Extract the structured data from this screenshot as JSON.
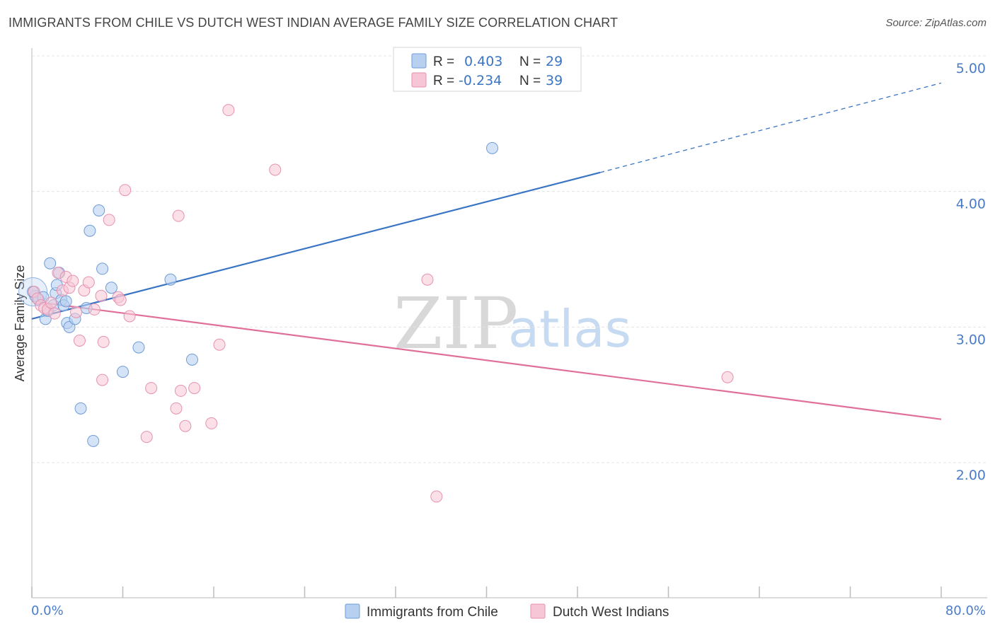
{
  "title": "IMMIGRANTS FROM CHILE VS DUTCH WEST INDIAN AVERAGE FAMILY SIZE CORRELATION CHART",
  "source": "Source: ZipAtlas.com",
  "watermark": {
    "zip": "ZIP",
    "atlas": "atlas"
  },
  "colors": {
    "blue": "#3a75c4",
    "blue_fill": "#b8d0f0",
    "pink": "#e0709a",
    "pink_fill": "#f7c6d6",
    "axis_text": "#4a7cc8",
    "grid": "#e4e4e4"
  },
  "legend": {
    "r_label": "R =",
    "n_label": "N =",
    "blue": {
      "r": "0.403",
      "n": "29"
    },
    "pink": {
      "r": "-0.234",
      "n": "39"
    }
  },
  "bottom_legend": {
    "blue": "Immigrants from Chile",
    "pink": "Dutch West Indians"
  },
  "chart_data": {
    "type": "scatter",
    "title": "IMMIGRANTS FROM CHILE VS DUTCH WEST INDIAN AVERAGE FAMILY SIZE CORRELATION CHART",
    "xlabel": "",
    "ylabel": "Average Family Size",
    "xlim": [
      0,
      80
    ],
    "ylim": [
      1.0,
      5.2
    ],
    "x_tick_labels": [
      "0.0%",
      "80.0%"
    ],
    "y_ticks": [
      2.0,
      3.0,
      4.0,
      5.0
    ],
    "y_tick_labels": [
      "2.00",
      "3.00",
      "4.00",
      "5.00"
    ],
    "grid": true,
    "legend_position": "top-center",
    "series": [
      {
        "name": "Immigrants from Chile",
        "color": "#3a75c4",
        "r": 0.403,
        "n": 29,
        "trend": {
          "x0": 0,
          "y0": 3.06,
          "x1": 50,
          "y1": 4.14,
          "dashed_to_x": 80,
          "dashed_to_y": 4.8
        },
        "points": [
          [
            0.3,
            3.23
          ],
          [
            0.6,
            3.2
          ],
          [
            1.0,
            3.22
          ],
          [
            1.2,
            3.06
          ],
          [
            1.4,
            3.12
          ],
          [
            1.6,
            3.47
          ],
          [
            1.9,
            3.16
          ],
          [
            2.1,
            3.25
          ],
          [
            2.2,
            3.31
          ],
          [
            2.4,
            3.4
          ],
          [
            2.6,
            3.2
          ],
          [
            2.8,
            3.16
          ],
          [
            3.0,
            3.19
          ],
          [
            3.1,
            3.03
          ],
          [
            3.3,
            3.0
          ],
          [
            3.8,
            3.06
          ],
          [
            4.3,
            2.4
          ],
          [
            4.8,
            3.14
          ],
          [
            5.1,
            3.71
          ],
          [
            5.4,
            2.16
          ],
          [
            5.9,
            3.86
          ],
          [
            6.2,
            3.43
          ],
          [
            7.0,
            3.29
          ],
          [
            8.0,
            2.67
          ],
          [
            9.4,
            2.85
          ],
          [
            12.2,
            3.35
          ],
          [
            14.1,
            2.76
          ],
          [
            40.5,
            4.32
          ],
          [
            0.1,
            3.26
          ]
        ]
      },
      {
        "name": "Dutch West Indians",
        "color": "#e0709a",
        "r": -0.234,
        "n": 39,
        "trend": {
          "x0": 0,
          "y0": 3.19,
          "x1": 80,
          "y1": 2.32
        },
        "points": [
          [
            0.2,
            3.26
          ],
          [
            0.5,
            3.21
          ],
          [
            0.8,
            3.16
          ],
          [
            1.1,
            3.14
          ],
          [
            1.4,
            3.13
          ],
          [
            1.7,
            3.18
          ],
          [
            2.0,
            3.1
          ],
          [
            2.3,
            3.4
          ],
          [
            2.7,
            3.27
          ],
          [
            3.0,
            3.37
          ],
          [
            3.3,
            3.29
          ],
          [
            3.6,
            3.34
          ],
          [
            3.9,
            3.11
          ],
          [
            4.2,
            2.9
          ],
          [
            4.6,
            3.27
          ],
          [
            5.0,
            3.33
          ],
          [
            5.5,
            3.13
          ],
          [
            6.1,
            3.23
          ],
          [
            6.2,
            2.61
          ],
          [
            6.3,
            2.89
          ],
          [
            6.8,
            3.79
          ],
          [
            7.6,
            3.22
          ],
          [
            7.8,
            3.2
          ],
          [
            8.2,
            4.01
          ],
          [
            8.6,
            3.08
          ],
          [
            10.1,
            2.19
          ],
          [
            10.5,
            2.55
          ],
          [
            12.7,
            2.4
          ],
          [
            12.9,
            3.82
          ],
          [
            13.1,
            2.53
          ],
          [
            13.5,
            2.27
          ],
          [
            14.3,
            2.55
          ],
          [
            15.8,
            2.29
          ],
          [
            16.5,
            2.87
          ],
          [
            17.3,
            4.6
          ],
          [
            21.4,
            4.16
          ],
          [
            34.8,
            3.35
          ],
          [
            35.6,
            1.75
          ],
          [
            61.2,
            2.63
          ]
        ]
      }
    ]
  }
}
